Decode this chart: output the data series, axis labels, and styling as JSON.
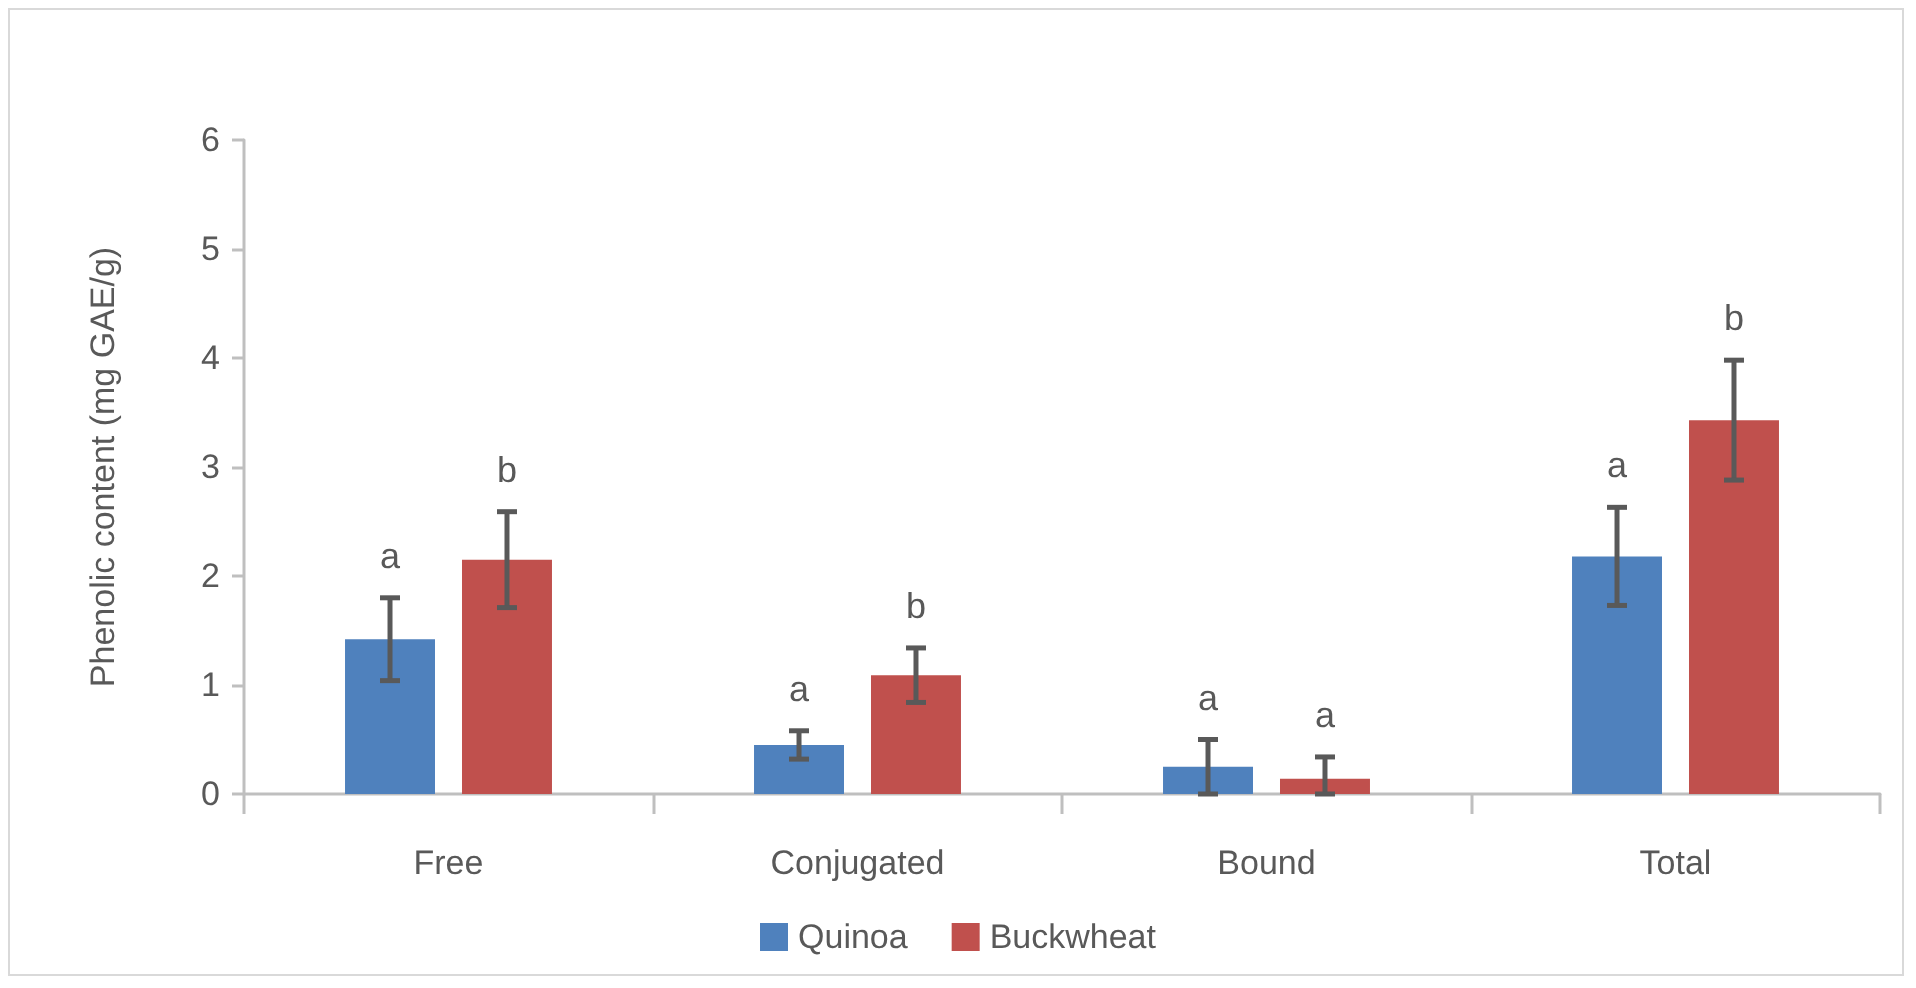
{
  "chart_data": {
    "type": "bar",
    "ylabel": "Phenolic content (mg GAE/g)",
    "categories": [
      "Free",
      "Conjugated",
      "Bound",
      "Total"
    ],
    "series": [
      {
        "name": "Quinoa",
        "color": "#4f81bd",
        "values": [
          1.42,
          0.45,
          0.25,
          2.18
        ],
        "errors": [
          0.38,
          0.13,
          0.25,
          0.45
        ],
        "value_labels": [
          "a",
          "a",
          "a",
          "a"
        ]
      },
      {
        "name": "Buckwheat",
        "color": "#c0504d",
        "values": [
          2.15,
          1.09,
          0.14,
          3.43
        ],
        "errors": [
          0.44,
          0.25,
          [
            0,
            0.34
          ],
          0.55
        ],
        "value_labels": [
          "b",
          "b",
          "a",
          "b"
        ]
      }
    ],
    "ylim": [
      0,
      6
    ],
    "yticks": [
      0,
      1,
      2,
      3,
      4,
      5,
      6
    ],
    "legend": "bottom"
  }
}
